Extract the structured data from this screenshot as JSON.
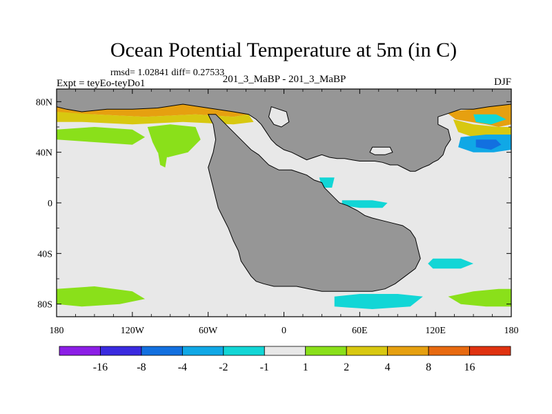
{
  "chart_data": {
    "type": "heatmap",
    "title": "Ocean Potential Temperature at 5m (in C)",
    "stats_line": "rmsd= 1.02841 diff= 0.27533",
    "experiment_label": "Expt = teyEo-teyDo1",
    "comparison_label": "201_3_MaBP - 201_3_MaBP",
    "season": "DJF",
    "x_ticks": [
      "180",
      "120W",
      "60W",
      "0",
      "60E",
      "120E",
      "180"
    ],
    "x_values": [
      -180,
      -120,
      -60,
      0,
      60,
      120,
      180
    ],
    "y_ticks": [
      "80N",
      "40N",
      "0",
      "40S",
      "80S"
    ],
    "y_values": [
      80,
      40,
      0,
      -40,
      -80
    ],
    "xlim": [
      -180,
      180
    ],
    "ylim": [
      -90,
      90
    ],
    "colorbar": {
      "boundaries": [
        "-16",
        "-8",
        "-4",
        "-2",
        "-1",
        "1",
        "2",
        "4",
        "8",
        "16"
      ],
      "colors": [
        "#8c1ee6",
        "#3a2ae0",
        "#1270e0",
        "#10a8e6",
        "#12d6d6",
        "#e8e8e8",
        "#8ae01a",
        "#d8c810",
        "#e6a010",
        "#e86a10",
        "#e03210"
      ]
    },
    "land_color": "#969696",
    "near_zero_color": "#e8e8e8",
    "land_polygons": [
      {
        "name": "northern-continent",
        "points": [
          [
            -180,
            90
          ],
          [
            180,
            90
          ],
          [
            180,
            78
          ],
          [
            162,
            76
          ],
          [
            150,
            74
          ],
          [
            140,
            74
          ],
          [
            128,
            70
          ],
          [
            122,
            68
          ],
          [
            122,
            62
          ],
          [
            130,
            58
          ],
          [
            132,
            50
          ],
          [
            128,
            44
          ],
          [
            126,
            38
          ],
          [
            122,
            34
          ],
          [
            118,
            32
          ],
          [
            115,
            30
          ],
          [
            110,
            28
          ],
          [
            108,
            27
          ],
          [
            104,
            25
          ],
          [
            100,
            25
          ],
          [
            96,
            27
          ],
          [
            90,
            30
          ],
          [
            84,
            30
          ],
          [
            78,
            32
          ],
          [
            72,
            33
          ],
          [
            66,
            33
          ],
          [
            60,
            33
          ],
          [
            54,
            34
          ],
          [
            48,
            35
          ],
          [
            42,
            35
          ],
          [
            36,
            36
          ],
          [
            30,
            38
          ],
          [
            24,
            36
          ],
          [
            18,
            34
          ],
          [
            14,
            36
          ],
          [
            10,
            38
          ],
          [
            6,
            40
          ],
          [
            0,
            42
          ],
          [
            -6,
            46
          ],
          [
            -10,
            50
          ],
          [
            -14,
            56
          ],
          [
            -18,
            62
          ],
          [
            -22,
            66
          ],
          [
            -28,
            70
          ],
          [
            -40,
            72
          ],
          [
            -60,
            75
          ],
          [
            -80,
            78
          ],
          [
            -100,
            75
          ],
          [
            -120,
            74
          ],
          [
            -140,
            74
          ],
          [
            -160,
            72
          ],
          [
            -172,
            74
          ],
          [
            -180,
            76
          ]
        ]
      },
      {
        "name": "southern-continent",
        "points": [
          [
            -60,
            70
          ],
          [
            -56,
            62
          ],
          [
            -54,
            50
          ],
          [
            -56,
            40
          ],
          [
            -60,
            28
          ],
          [
            -58,
            20
          ],
          [
            -56,
            12
          ],
          [
            -54,
            4
          ],
          [
            -52,
            -4
          ],
          [
            -48,
            -12
          ],
          [
            -44,
            -20
          ],
          [
            -40,
            -30
          ],
          [
            -36,
            -38
          ],
          [
            -34,
            -46
          ],
          [
            -30,
            -52
          ],
          [
            -26,
            -58
          ],
          [
            -22,
            -62
          ],
          [
            -16,
            -64
          ],
          [
            -8,
            -66
          ],
          [
            0,
            -66
          ],
          [
            10,
            -66
          ],
          [
            20,
            -68
          ],
          [
            30,
            -70
          ],
          [
            40,
            -70
          ],
          [
            50,
            -70
          ],
          [
            60,
            -70
          ],
          [
            70,
            -70
          ],
          [
            80,
            -68
          ],
          [
            88,
            -64
          ],
          [
            96,
            -58
          ],
          [
            104,
            -52
          ],
          [
            108,
            -44
          ],
          [
            106,
            -36
          ],
          [
            104,
            -28
          ],
          [
            100,
            -22
          ],
          [
            94,
            -18
          ],
          [
            86,
            -16
          ],
          [
            78,
            -14
          ],
          [
            70,
            -12
          ],
          [
            64,
            -10
          ],
          [
            58,
            -6
          ],
          [
            50,
            -2
          ],
          [
            44,
            0
          ],
          [
            40,
            4
          ],
          [
            36,
            8
          ],
          [
            32,
            12
          ],
          [
            30,
            16
          ],
          [
            24,
            18
          ],
          [
            18,
            22
          ],
          [
            12,
            24
          ],
          [
            6,
            26
          ],
          [
            0,
            26
          ],
          [
            -4,
            26
          ],
          [
            -8,
            28
          ],
          [
            -12,
            30
          ],
          [
            -16,
            34
          ],
          [
            -20,
            38
          ],
          [
            -26,
            42
          ],
          [
            -30,
            46
          ],
          [
            -36,
            52
          ],
          [
            -42,
            58
          ],
          [
            -48,
            64
          ],
          [
            -54,
            70
          ]
        ]
      }
    ],
    "lake_polygons": [
      {
        "name": "northern-inlet",
        "points": [
          [
            -10,
            76
          ],
          [
            2,
            72
          ],
          [
            4,
            64
          ],
          [
            -2,
            60
          ],
          [
            -8,
            62
          ],
          [
            -12,
            68
          ]
        ]
      },
      {
        "name": "eastern-gulf",
        "points": [
          [
            70,
            44
          ],
          [
            84,
            44
          ],
          [
            86,
            40
          ],
          [
            80,
            38
          ],
          [
            72,
            38
          ],
          [
            68,
            40
          ]
        ]
      }
    ],
    "anomaly_regions": [
      {
        "name": "arctic-warm-band-west",
        "class": 8,
        "points": [
          [
            -180,
            78
          ],
          [
            -140,
            74
          ],
          [
            -100,
            76
          ],
          [
            -80,
            78
          ],
          [
            -60,
            75
          ],
          [
            -40,
            72
          ],
          [
            -28,
            70
          ],
          [
            -40,
            68
          ],
          [
            -70,
            70
          ],
          [
            -110,
            68
          ],
          [
            -150,
            70
          ],
          [
            -180,
            70
          ]
        ]
      },
      {
        "name": "arctic-yellow-band-west",
        "class": 4,
        "points": [
          [
            -180,
            72
          ],
          [
            -150,
            70
          ],
          [
            -110,
            68
          ],
          [
            -70,
            70
          ],
          [
            -40,
            68
          ],
          [
            -28,
            70
          ],
          [
            -24,
            64
          ],
          [
            -40,
            62
          ],
          [
            -80,
            64
          ],
          [
            -120,
            62
          ],
          [
            -160,
            64
          ],
          [
            -180,
            64
          ]
        ]
      },
      {
        "name": "north-atlantic-green-west",
        "class": 2,
        "points": [
          [
            -180,
            58
          ],
          [
            -150,
            60
          ],
          [
            -120,
            58
          ],
          [
            -110,
            52
          ],
          [
            -120,
            46
          ],
          [
            -150,
            48
          ],
          [
            -180,
            50
          ]
        ]
      },
      {
        "name": "north-pacific-green-ext",
        "class": 2,
        "points": [
          [
            -108,
            60
          ],
          [
            -90,
            62
          ],
          [
            -70,
            60
          ],
          [
            -66,
            50
          ],
          [
            -76,
            40
          ],
          [
            -92,
            36
          ],
          [
            -100,
            40
          ],
          [
            -104,
            48
          ]
        ]
      },
      {
        "name": "coastal-green-strip",
        "class": 2,
        "points": [
          [
            -102,
            54
          ],
          [
            -96,
            56
          ],
          [
            -92,
            40
          ],
          [
            -94,
            28
          ],
          [
            -98,
            30
          ],
          [
            -100,
            42
          ]
        ]
      },
      {
        "name": "arctic-warm-band-east",
        "class": 8,
        "points": [
          [
            128,
            72
          ],
          [
            150,
            74
          ],
          [
            162,
            76
          ],
          [
            180,
            78
          ],
          [
            180,
            62
          ],
          [
            170,
            60
          ],
          [
            160,
            62
          ],
          [
            148,
            64
          ],
          [
            136,
            66
          ]
        ]
      },
      {
        "name": "east-yellow-band",
        "class": 4,
        "points": [
          [
            134,
            66
          ],
          [
            150,
            62
          ],
          [
            170,
            60
          ],
          [
            180,
            60
          ],
          [
            180,
            48
          ],
          [
            168,
            50
          ],
          [
            150,
            52
          ],
          [
            138,
            56
          ]
        ]
      },
      {
        "name": "east-cold-patch",
        "class": -2,
        "points": [
          [
            140,
            52
          ],
          [
            160,
            54
          ],
          [
            180,
            54
          ],
          [
            180,
            42
          ],
          [
            166,
            40
          ],
          [
            150,
            40
          ],
          [
            138,
            44
          ]
        ]
      },
      {
        "name": "east-cold-core",
        "class": -4,
        "points": [
          [
            152,
            50
          ],
          [
            168,
            50
          ],
          [
            172,
            46
          ],
          [
            164,
            42
          ],
          [
            152,
            44
          ]
        ]
      },
      {
        "name": "east-arctic-cold-spot",
        "class": -1,
        "points": [
          [
            150,
            70
          ],
          [
            168,
            70
          ],
          [
            176,
            66
          ],
          [
            164,
            62
          ],
          [
            152,
            64
          ]
        ]
      },
      {
        "name": "equatorial-cold-patch",
        "class": -1,
        "points": [
          [
            46,
            2
          ],
          [
            70,
            2
          ],
          [
            82,
            0
          ],
          [
            78,
            -4
          ],
          [
            60,
            -4
          ],
          [
            46,
            -2
          ]
        ]
      },
      {
        "name": "gulf-cold-patch",
        "class": -1,
        "points": [
          [
            28,
            20
          ],
          [
            40,
            20
          ],
          [
            38,
            12
          ],
          [
            30,
            12
          ]
        ]
      },
      {
        "name": "southern-cold-patch",
        "class": -1,
        "points": [
          [
            118,
            -44
          ],
          [
            140,
            -44
          ],
          [
            150,
            -48
          ],
          [
            140,
            -52
          ],
          [
            118,
            -52
          ],
          [
            114,
            -48
          ]
        ]
      },
      {
        "name": "far-south-cold-band",
        "class": -1,
        "points": [
          [
            40,
            -74
          ],
          [
            60,
            -72
          ],
          [
            90,
            -72
          ],
          [
            110,
            -74
          ],
          [
            100,
            -82
          ],
          [
            70,
            -84
          ],
          [
            40,
            -82
          ]
        ]
      },
      {
        "name": "southern-green-west",
        "class": 2,
        "points": [
          [
            -180,
            -68
          ],
          [
            -150,
            -66
          ],
          [
            -120,
            -70
          ],
          [
            -110,
            -76
          ],
          [
            -130,
            -80
          ],
          [
            -160,
            -82
          ],
          [
            -180,
            -80
          ]
        ]
      },
      {
        "name": "southern-green-east",
        "class": 2,
        "points": [
          [
            130,
            -74
          ],
          [
            150,
            -70
          ],
          [
            170,
            -68
          ],
          [
            180,
            -68
          ],
          [
            180,
            -82
          ],
          [
            160,
            -82
          ],
          [
            140,
            -80
          ]
        ]
      }
    ]
  }
}
